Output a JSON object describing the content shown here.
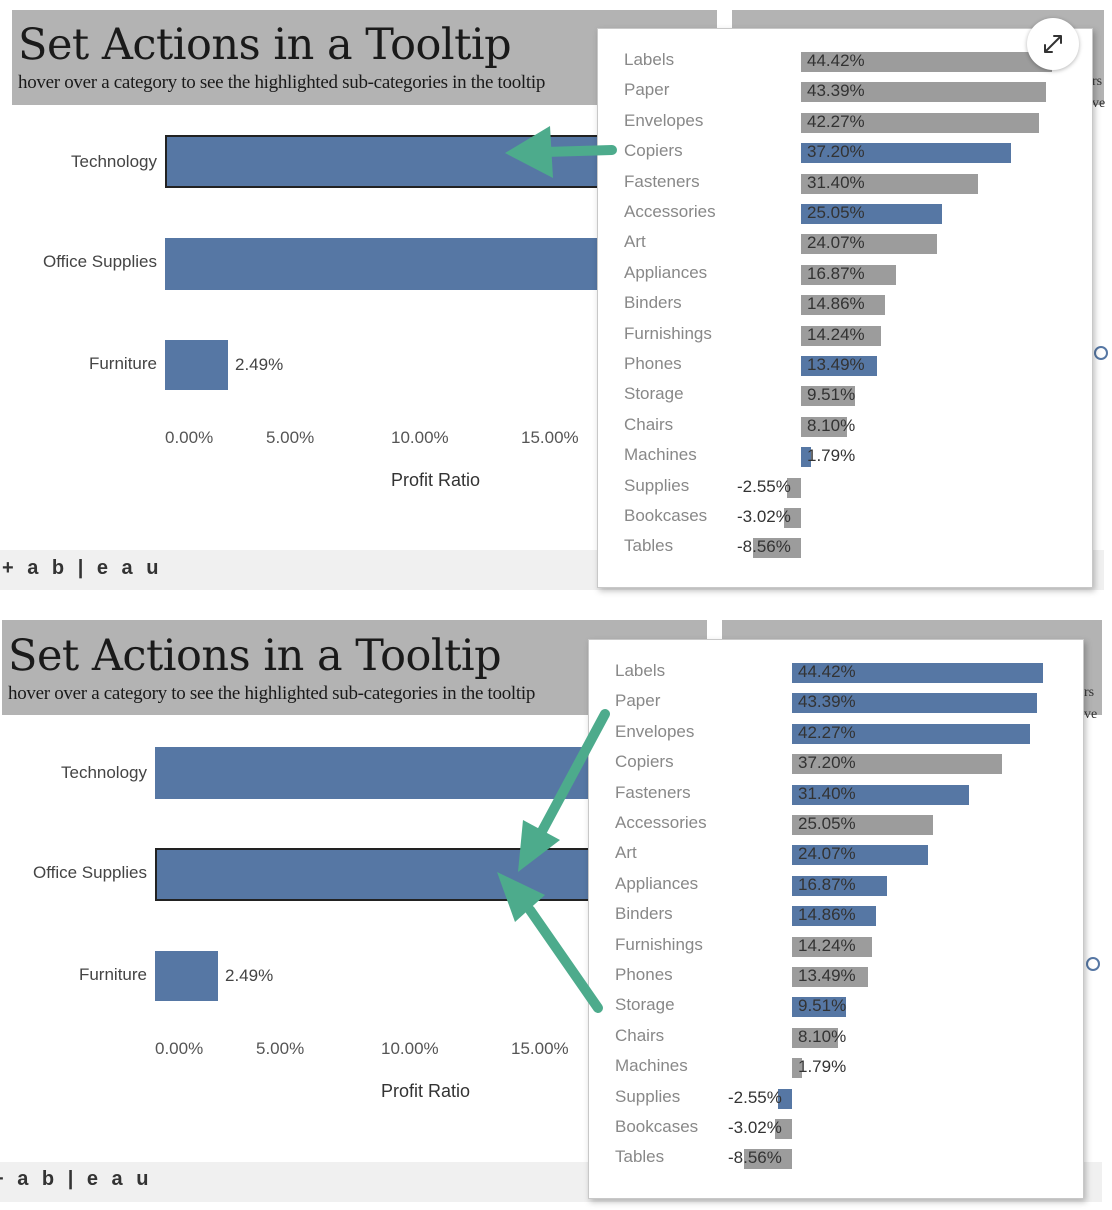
{
  "dashboard": {
    "title": "Set Actions in a Tooltip",
    "subtitle": "hover over a category to see the highlighted sub-categories in the tooltip",
    "categories": [
      {
        "name": "Technology"
      },
      {
        "name": "Office Supplies"
      },
      {
        "name": "Furniture",
        "value_label": "2.49%"
      }
    ],
    "axis": {
      "ticks": [
        "0.00%",
        "5.00%",
        "10.00%",
        "15.00%"
      ],
      "title": "Profit Ratio"
    },
    "logo": "+ a b | e a u",
    "side_fragments": [
      "rs",
      "ve"
    ]
  },
  "tooltip": {
    "rows": [
      {
        "name": "Labels",
        "label": "44.42%"
      },
      {
        "name": "Paper",
        "label": "43.39%"
      },
      {
        "name": "Envelopes",
        "label": "42.27%"
      },
      {
        "name": "Copiers",
        "label": "37.20%"
      },
      {
        "name": "Fasteners",
        "label": "31.40%"
      },
      {
        "name": "Accessories",
        "label": "25.05%"
      },
      {
        "name": "Art",
        "label": "24.07%"
      },
      {
        "name": "Appliances",
        "label": "16.87%"
      },
      {
        "name": "Binders",
        "label": "14.86%"
      },
      {
        "name": "Furnishings",
        "label": "14.24%"
      },
      {
        "name": "Phones",
        "label": "13.49%"
      },
      {
        "name": "Storage",
        "label": "9.51%"
      },
      {
        "name": "Chairs",
        "label": "8.10%"
      },
      {
        "name": "Machines",
        "label": "1.79%"
      },
      {
        "name": "Supplies",
        "label": "-2.55%"
      },
      {
        "name": "Bookcases",
        "label": "-3.02%"
      },
      {
        "name": "Tables",
        "label": "-8.56%"
      }
    ],
    "values": [
      44.42,
      43.39,
      42.27,
      37.2,
      31.4,
      25.05,
      24.07,
      16.87,
      14.86,
      14.24,
      13.49,
      9.51,
      8.1,
      1.79,
      -2.55,
      -3.02,
      -8.56
    ]
  },
  "panels": [
    {
      "selected_category": "Technology",
      "highlighted": [
        "Copiers",
        "Accessories",
        "Phones",
        "Machines"
      ],
      "show_expand_button": true,
      "arrows_to": "Technology"
    },
    {
      "selected_category": "Office Supplies",
      "highlighted": [
        "Labels",
        "Paper",
        "Envelopes",
        "Fasteners",
        "Art",
        "Appliances",
        "Binders",
        "Storage",
        "Supplies"
      ],
      "show_expand_button": false,
      "arrows_to": "Office Supplies"
    }
  ],
  "colors": {
    "highlight": "#5677a4",
    "default": "#9c9c9c",
    "arrow": "#4dab8c",
    "title_band": "#b3b3b3"
  },
  "icons": {
    "expand": "expand-arrows-icon"
  }
}
